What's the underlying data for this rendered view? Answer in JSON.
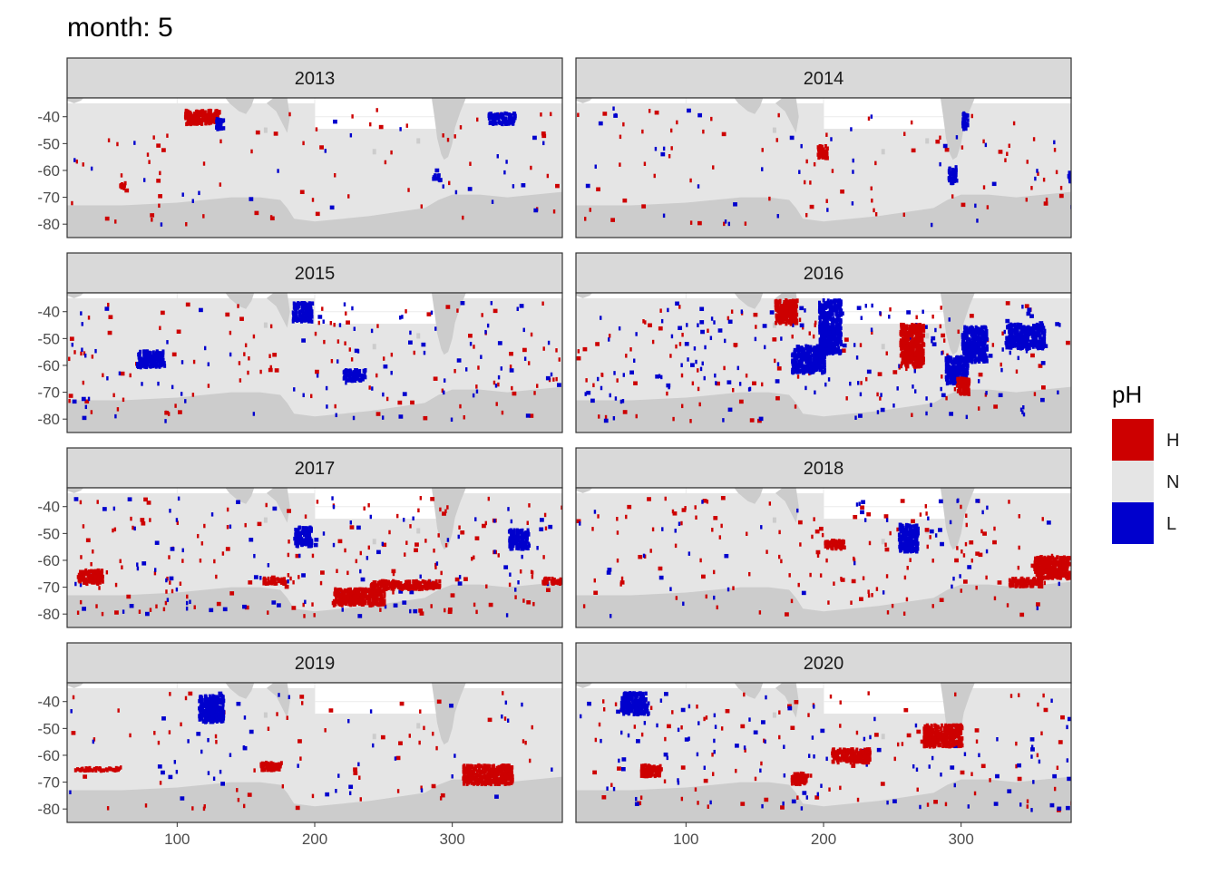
{
  "chart_data": {
    "type": "heatmap",
    "title": "month: 5",
    "xlabel": "",
    "ylabel": "",
    "facets": [
      "2013",
      "2014",
      "2015",
      "2016",
      "2017",
      "2018",
      "2019",
      "2020"
    ],
    "xlim": [
      20,
      380
    ],
    "ylim": [
      -85,
      -33
    ],
    "x_ticks": [
      100,
      200,
      300
    ],
    "y_ticks": [
      -40,
      -50,
      -60,
      -70,
      -80
    ],
    "x_tick_labels": [
      "100",
      "200",
      "300"
    ],
    "y_tick_labels": [
      "-40",
      "-50",
      "-60",
      "-70",
      "-80"
    ],
    "legend": {
      "title": "pH",
      "position": "right",
      "entries": [
        {
          "label": "H",
          "color": "#cd0000"
        },
        {
          "label": "N",
          "color": "#e5e5e5"
        },
        {
          "label": "L",
          "color": "#0000cd"
        }
      ]
    },
    "colors": {
      "H": "#cd0000",
      "N": "#e5e5e5",
      "L": "#0000cd",
      "land": "#cccccc",
      "strip": "#d9d9d9",
      "panel_border": "#333333",
      "grid": "#ebebeb"
    },
    "regions": {
      "2013": [
        {
          "class": "L",
          "x": [
            285,
            291
          ],
          "y": [
            -63,
            -61
          ]
        },
        {
          "class": "H",
          "x": [
            57,
            62
          ],
          "y": [
            -66,
            -64
          ]
        },
        {
          "class": "H",
          "x": [
            105,
            130
          ],
          "y": [
            -42,
            -37
          ]
        },
        {
          "class": "L",
          "x": [
            127,
            133
          ],
          "y": [
            -44,
            -40
          ]
        },
        {
          "class": "L",
          "x": [
            325,
            345
          ],
          "y": [
            -42,
            -38
          ]
        }
      ],
      "2014": [
        {
          "class": "L",
          "x": [
            290,
            296
          ],
          "y": [
            -64,
            -58
          ]
        },
        {
          "class": "L",
          "x": [
            300,
            304
          ],
          "y": [
            -44,
            -38
          ]
        },
        {
          "class": "H",
          "x": [
            195,
            202
          ],
          "y": [
            -55,
            -50
          ]
        },
        {
          "class": "L",
          "x": [
            377,
            380
          ],
          "y": [
            -64,
            -60
          ]
        }
      ],
      "2015": [
        {
          "class": "L",
          "x": [
            183,
            198
          ],
          "y": [
            -43,
            -36
          ]
        },
        {
          "class": "L",
          "x": [
            220,
            236
          ],
          "y": [
            -65,
            -61
          ]
        },
        {
          "class": "L",
          "x": [
            70,
            90
          ],
          "y": [
            -60,
            -54
          ]
        }
      ],
      "2016": [
        {
          "class": "L",
          "x": [
            176,
            200
          ],
          "y": [
            -62,
            -52
          ]
        },
        {
          "class": "L",
          "x": [
            196,
            212
          ],
          "y": [
            -55,
            -35
          ]
        },
        {
          "class": "H",
          "x": [
            164,
            180
          ],
          "y": [
            -44,
            -35
          ]
        },
        {
          "class": "H",
          "x": [
            255,
            272
          ],
          "y": [
            -60,
            -44
          ]
        },
        {
          "class": "L",
          "x": [
            288,
            304
          ],
          "y": [
            -66,
            -56
          ]
        },
        {
          "class": "L",
          "x": [
            300,
            318
          ],
          "y": [
            -58,
            -45
          ]
        },
        {
          "class": "H",
          "x": [
            296,
            305
          ],
          "y": [
            -70,
            -64
          ]
        },
        {
          "class": "L",
          "x": [
            332,
            360
          ],
          "y": [
            -53,
            -44
          ]
        }
      ],
      "2017": [
        {
          "class": "H",
          "x": [
            213,
            250
          ],
          "y": [
            -76,
            -70
          ]
        },
        {
          "class": "H",
          "x": [
            240,
            290
          ],
          "y": [
            -70,
            -67
          ]
        },
        {
          "class": "H",
          "x": [
            27,
            45
          ],
          "y": [
            -68,
            -63
          ]
        },
        {
          "class": "H",
          "x": [
            162,
            178
          ],
          "y": [
            -68,
            -66
          ]
        },
        {
          "class": "L",
          "x": [
            185,
            197
          ],
          "y": [
            -54,
            -47
          ]
        },
        {
          "class": "L",
          "x": [
            340,
            355
          ],
          "y": [
            -55,
            -48
          ]
        },
        {
          "class": "H",
          "x": [
            365,
            380
          ],
          "y": [
            -68,
            -66
          ]
        }
      ],
      "2018": [
        {
          "class": "H",
          "x": [
            352,
            378
          ],
          "y": [
            -66,
            -58
          ]
        },
        {
          "class": "H",
          "x": [
            334,
            358
          ],
          "y": [
            -69,
            -66
          ]
        },
        {
          "class": "L",
          "x": [
            254,
            268
          ],
          "y": [
            -56,
            -46
          ]
        },
        {
          "class": "H",
          "x": [
            200,
            214
          ],
          "y": [
            -55,
            -52
          ]
        }
      ],
      "2019": [
        {
          "class": "H",
          "x": [
            307,
            343
          ],
          "y": [
            -70,
            -63
          ]
        },
        {
          "class": "H",
          "x": [
            25,
            57
          ],
          "y": [
            -65,
            -64
          ]
        },
        {
          "class": "L",
          "x": [
            115,
            133
          ],
          "y": [
            -47,
            -37
          ]
        },
        {
          "class": "H",
          "x": [
            160,
            175
          ],
          "y": [
            -65,
            -62
          ]
        }
      ],
      "2020": [
        {
          "class": "H",
          "x": [
            272,
            300
          ],
          "y": [
            -56,
            -48
          ]
        },
        {
          "class": "H",
          "x": [
            205,
            233
          ],
          "y": [
            -62,
            -57
          ]
        },
        {
          "class": "L",
          "x": [
            52,
            72
          ],
          "y": [
            -44,
            -36
          ]
        },
        {
          "class": "H",
          "x": [
            66,
            82
          ],
          "y": [
            -67,
            -63
          ]
        },
        {
          "class": "H",
          "x": [
            176,
            188
          ],
          "y": [
            -70,
            -66
          ]
        }
      ]
    },
    "scatter_density": {
      "2013": {
        "H": 70,
        "L": 28
      },
      "2014": {
        "H": 80,
        "L": 40
      },
      "2015": {
        "H": 120,
        "L": 90
      },
      "2016": {
        "H": 120,
        "L": 160
      },
      "2017": {
        "H": 170,
        "L": 100
      },
      "2018": {
        "H": 150,
        "L": 50
      },
      "2019": {
        "H": 70,
        "L": 50
      },
      "2020": {
        "H": 110,
        "L": 110
      }
    }
  }
}
